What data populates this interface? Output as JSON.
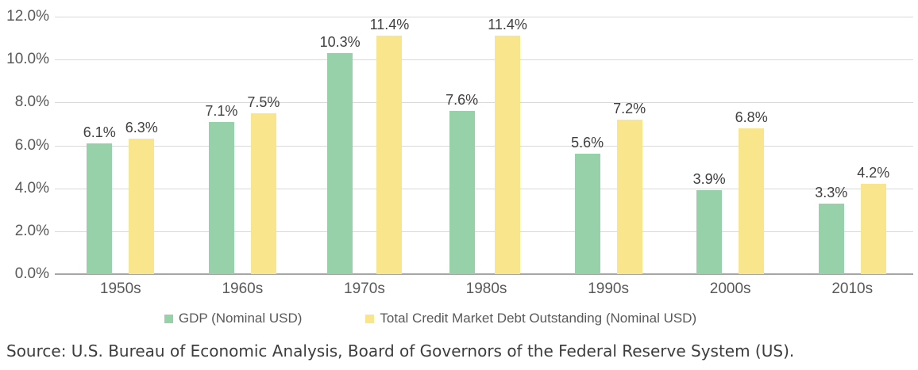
{
  "chart_data": {
    "type": "bar",
    "title": "",
    "categories": [
      "1950s",
      "1960s",
      "1970s",
      "1980s",
      "1990s",
      "2000s",
      "2010s"
    ],
    "series": [
      {
        "name": "GDP (Nominal USD)",
        "color": "#97d1a9",
        "values": [
          6.1,
          7.1,
          10.3,
          7.6,
          5.6,
          3.9,
          3.3
        ],
        "labels": [
          "6.1%",
          "7.1%",
          "10.3%",
          "7.6%",
          "5.6%",
          "3.9%",
          "3.3%"
        ]
      },
      {
        "name": "Total Credit Market Debt Outstanding (Nominal USD)",
        "color": "#f8e58c",
        "values": [
          6.3,
          7.5,
          11.4,
          11.4,
          7.2,
          6.8,
          4.2
        ],
        "labels": [
          "6.3%",
          "7.5%",
          "11.4%",
          "11.4%",
          "7.2%",
          "6.8%",
          "4.2%"
        ]
      }
    ],
    "ylim": [
      0,
      12
    ],
    "yticks": [
      "12.0%",
      "10.0%",
      "8.0%",
      "6.0%",
      "4.0%",
      "2.0%",
      "0.0%"
    ],
    "grid": true,
    "legend_position": "bottom",
    "xlabel": "",
    "ylabel": ""
  },
  "legend": {
    "items": [
      {
        "label": "GDP (Nominal USD)",
        "color": "#97d1a9"
      },
      {
        "label": "Total Credit Market Debt Outstanding (Nominal USD)",
        "color": "#f8e58c"
      }
    ]
  },
  "source_note": "Source: U.S. Bureau of Economic Analysis, Board of Governors of the Federal Reserve System (US).",
  "colors": {
    "gdp_bar": "#97d1a9",
    "debt_bar": "#f8e58c",
    "gridline": "#d9d9d9",
    "axis_line": "#a6a6a6",
    "tick_text": "#595959",
    "data_label_text": "#404040"
  }
}
